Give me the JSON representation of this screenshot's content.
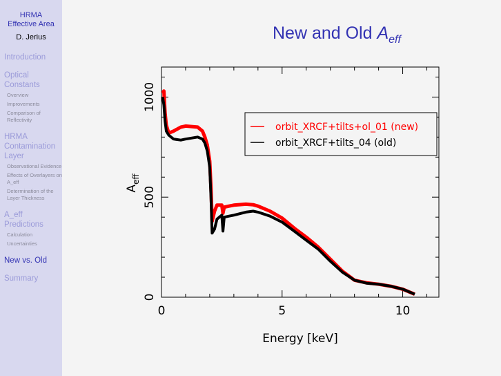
{
  "sidebar": {
    "title_line1": "HRMA",
    "title_line2": "Effective Area",
    "author": "D. Jerius",
    "sections": [
      {
        "label": "Introduction",
        "subs": []
      },
      {
        "label": "Optical Constants",
        "subs": [
          "Overview",
          "Improvements",
          "Comparison of Reflectivity"
        ]
      },
      {
        "label": "HRMA Contamination Layer",
        "subs": [
          "Observational Evidence",
          "Effects of Overlayers on A_eff",
          "Determination of the Layer Thickness"
        ]
      },
      {
        "label": "A_eff Predictions",
        "subs": [
          "Calculation",
          "Uncertainties"
        ]
      },
      {
        "label": "New vs. Old",
        "subs": [],
        "current": true
      },
      {
        "label": "Summary",
        "subs": []
      }
    ]
  },
  "slide": {
    "title": "New and Old A_eff",
    "title_main": "New and Old ",
    "title_sym": "A",
    "title_sub": "eff"
  },
  "chart_data": {
    "type": "line",
    "xlabel": "Energy [keV]",
    "ylabel": "A_eff",
    "ylabel_main": "A",
    "ylabel_sub": "eff",
    "xlim": [
      0,
      11.5
    ],
    "ylim": [
      0,
      1150
    ],
    "xticks": [
      0,
      5,
      10
    ],
    "yticks": [
      0,
      500,
      1000
    ],
    "grid": false,
    "legend": "top-right",
    "x": [
      0.05,
      0.1,
      0.15,
      0.2,
      0.3,
      0.5,
      0.8,
      1.0,
      1.5,
      1.7,
      1.8,
      1.9,
      2.0,
      2.05,
      2.1,
      2.2,
      2.3,
      2.5,
      2.55,
      2.6,
      2.8,
      3.0,
      3.5,
      3.8,
      4.0,
      4.5,
      5.0,
      5.5,
      6.0,
      6.5,
      7.0,
      7.5,
      8.0,
      8.5,
      9.0,
      9.5,
      10.0,
      10.5
    ],
    "series": [
      {
        "name": "orbit_XRCF+tilts+ol_01 (new)",
        "color": "#ff0000",
        "values": [
          1020,
          1030,
          920,
          860,
          820,
          830,
          850,
          855,
          850,
          830,
          800,
          760,
          680,
          550,
          380,
          430,
          460,
          460,
          420,
          450,
          455,
          460,
          465,
          462,
          455,
          430,
          395,
          345,
          300,
          250,
          190,
          130,
          85,
          72,
          65,
          55,
          40,
          15
        ]
      },
      {
        "name": "orbit_XRCF+tilts_04 (old)",
        "color": "#000000",
        "values": [
          1000,
          960,
          880,
          830,
          810,
          790,
          785,
          790,
          800,
          790,
          770,
          730,
          650,
          500,
          320,
          340,
          390,
          410,
          330,
          400,
          405,
          410,
          425,
          430,
          425,
          405,
          375,
          330,
          285,
          240,
          180,
          125,
          85,
          70,
          65,
          55,
          40,
          15
        ]
      }
    ]
  }
}
